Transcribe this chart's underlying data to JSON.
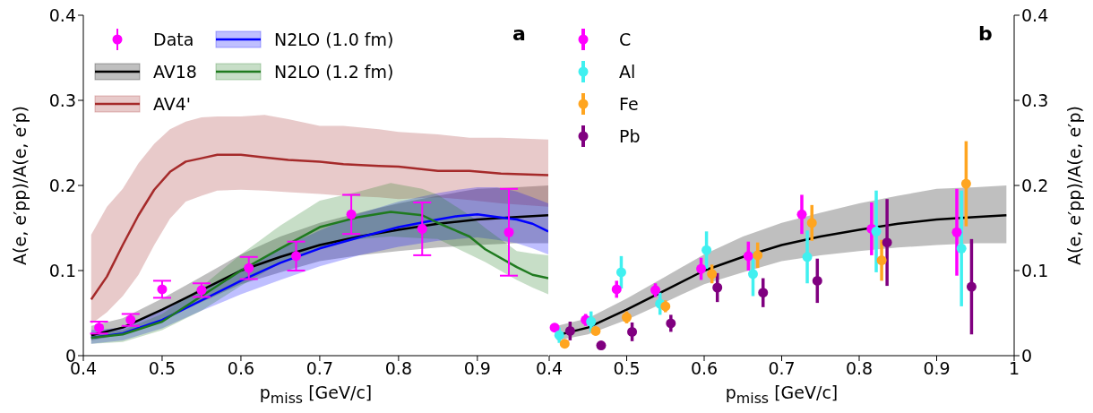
{
  "chart_data": [
    {
      "type": "line",
      "title": "a",
      "xlabel": "p$_{miss}$ [GeV/c]",
      "ylabel": "A(e, e′pp)/A(e, e′p)",
      "xlim": [
        0.4,
        0.99
      ],
      "xticks": [
        0.4,
        0.5,
        0.6,
        0.7,
        0.8,
        0.9
      ],
      "ylim": [
        0,
        0.4
      ],
      "yticks": [
        0,
        0.1,
        0.2,
        0.3,
        0.4
      ],
      "grid": false,
      "legend": "top left",
      "line_style": "solid",
      "series": [
        {
          "name": "Data",
          "type": "scatter",
          "color": "#ff00ff",
          "marker": "circle",
          "x": [
            0.42,
            0.46,
            0.5,
            0.55,
            0.61,
            0.67,
            0.74,
            0.83,
            0.94
          ],
          "values": [
            0.033,
            0.042,
            0.078,
            0.077,
            0.103,
            0.117,
            0.166,
            0.149,
            0.145
          ],
          "errors": [
            0.007,
            0.007,
            0.01,
            0.008,
            0.013,
            0.017,
            0.023,
            0.031,
            0.051
          ]
        },
        {
          "name": "AV18",
          "type": "line",
          "color": "#000000",
          "x": [
            0.41,
            0.45,
            0.5,
            0.55,
            0.6,
            0.65,
            0.7,
            0.75,
            0.8,
            0.85,
            0.9,
            0.95,
            0.99
          ],
          "values": [
            0.024,
            0.033,
            0.054,
            0.077,
            0.1,
            0.116,
            0.13,
            0.14,
            0.148,
            0.155,
            0.16,
            0.163,
            0.165
          ],
          "upper": [
            0.035,
            0.044,
            0.067,
            0.093,
            0.119,
            0.14,
            0.156,
            0.168,
            0.179,
            0.188,
            0.196,
            0.198,
            0.2
          ],
          "lower": [
            0.018,
            0.025,
            0.042,
            0.063,
            0.084,
            0.098,
            0.111,
            0.118,
            0.123,
            0.127,
            0.13,
            0.132,
            0.132
          ]
        },
        {
          "name": "AV4'",
          "type": "line",
          "color": "#a52a2a",
          "x": [
            0.41,
            0.43,
            0.45,
            0.47,
            0.49,
            0.51,
            0.53,
            0.55,
            0.57,
            0.6,
            0.63,
            0.66,
            0.7,
            0.73,
            0.775,
            0.8,
            0.85,
            0.89,
            0.93,
            0.99
          ],
          "values": [
            0.066,
            0.093,
            0.13,
            0.165,
            0.195,
            0.216,
            0.228,
            0.232,
            0.236,
            0.236,
            0.233,
            0.23,
            0.228,
            0.225,
            0.223,
            0.222,
            0.217,
            0.217,
            0.214,
            0.212
          ],
          "upper": [
            0.142,
            0.175,
            0.196,
            0.226,
            0.249,
            0.266,
            0.275,
            0.28,
            0.281,
            0.281,
            0.283,
            0.278,
            0.27,
            0.27,
            0.266,
            0.263,
            0.26,
            0.256,
            0.256,
            0.254
          ],
          "lower": [
            0.037,
            0.051,
            0.07,
            0.095,
            0.13,
            0.161,
            0.181,
            0.188,
            0.194,
            0.195,
            0.194,
            0.192,
            0.19,
            0.188,
            0.186,
            0.184,
            0.186,
            0.183,
            0.179,
            0.175
          ]
        },
        {
          "name": "N2LO (1.0 fm)",
          "type": "line",
          "color": "#0000ff",
          "x": [
            0.41,
            0.45,
            0.5,
            0.55,
            0.6,
            0.65,
            0.7,
            0.75,
            0.8,
            0.85,
            0.875,
            0.9,
            0.925,
            0.95,
            0.97,
            0.99
          ],
          "values": [
            0.021,
            0.026,
            0.042,
            0.065,
            0.088,
            0.109,
            0.126,
            0.139,
            0.151,
            0.16,
            0.164,
            0.166,
            0.163,
            0.16,
            0.155,
            0.146
          ],
          "upper": [
            0.03,
            0.033,
            0.053,
            0.075,
            0.102,
            0.126,
            0.147,
            0.167,
            0.181,
            0.191,
            0.195,
            0.198,
            0.198,
            0.193,
            0.186,
            0.179
          ],
          "lower": [
            0.014,
            0.018,
            0.032,
            0.053,
            0.072,
            0.089,
            0.105,
            0.118,
            0.128,
            0.135,
            0.137,
            0.139,
            0.136,
            0.132,
            0.126,
            0.119
          ]
        },
        {
          "name": "N2LO (1.2 fm)",
          "type": "line",
          "color": "#1f7a1f",
          "x": [
            0.41,
            0.45,
            0.5,
            0.55,
            0.6,
            0.65,
            0.7,
            0.75,
            0.79,
            0.83,
            0.85,
            0.89,
            0.91,
            0.95,
            0.97,
            0.99
          ],
          "values": [
            0.021,
            0.025,
            0.04,
            0.07,
            0.1,
            0.126,
            0.151,
            0.163,
            0.169,
            0.165,
            0.156,
            0.14,
            0.125,
            0.104,
            0.095,
            0.091
          ],
          "upper": [
            0.026,
            0.03,
            0.049,
            0.081,
            0.119,
            0.153,
            0.182,
            0.193,
            0.203,
            0.196,
            0.189,
            0.165,
            0.15,
            0.123,
            0.12,
            0.118
          ],
          "lower": [
            0.014,
            0.016,
            0.03,
            0.053,
            0.082,
            0.109,
            0.126,
            0.137,
            0.14,
            0.138,
            0.137,
            0.119,
            0.11,
            0.089,
            0.08,
            0.072
          ]
        }
      ]
    },
    {
      "type": "line",
      "title": "b",
      "xlabel": "p$_{miss}$ [GeV/c]",
      "ylabel": "A(e, e′pp)/A(e, e′p)",
      "xlim": [
        0.4,
        1.0
      ],
      "xticks": [
        0.4,
        0.5,
        0.6,
        0.7,
        0.8,
        0.9,
        1
      ],
      "ylim": [
        0,
        0.4
      ],
      "yticks": [
        0,
        0.1,
        0.2,
        0.3,
        0.4
      ],
      "grid": false,
      "legend": "top left",
      "line_style": "solid",
      "series": [
        {
          "type": "line",
          "color": "#000000",
          "x": [
            0.41,
            0.45,
            0.5,
            0.55,
            0.6,
            0.65,
            0.7,
            0.75,
            0.8,
            0.85,
            0.9,
            0.95,
            0.99
          ],
          "values": [
            0.024,
            0.033,
            0.054,
            0.077,
            0.1,
            0.116,
            0.13,
            0.14,
            0.148,
            0.155,
            0.16,
            0.163,
            0.165
          ],
          "upper": [
            0.035,
            0.044,
            0.067,
            0.093,
            0.119,
            0.14,
            0.156,
            0.168,
            0.179,
            0.188,
            0.196,
            0.198,
            0.2
          ],
          "lower": [
            0.018,
            0.025,
            0.042,
            0.063,
            0.084,
            0.098,
            0.111,
            0.118,
            0.123,
            0.127,
            0.13,
            0.132,
            0.132
          ]
        },
        {
          "name": "C",
          "type": "scatter",
          "color": "#ff00ff",
          "marker": "circle",
          "x": [
            0.407,
            0.447,
            0.487,
            0.537,
            0.596,
            0.657,
            0.726,
            0.816,
            0.926
          ],
          "values": [
            0.033,
            0.042,
            0.078,
            0.077,
            0.102,
            0.117,
            0.166,
            0.149,
            0.145
          ],
          "errors": [
            0.005,
            0.007,
            0.01,
            0.008,
            0.013,
            0.017,
            0.023,
            0.031,
            0.051
          ]
        },
        {
          "name": "Al",
          "type": "scatter",
          "color": "#40f0f0",
          "marker": "circle",
          "x": [
            0.413,
            0.454,
            0.493,
            0.543,
            0.603,
            0.663,
            0.733,
            0.822,
            0.932
          ],
          "values": [
            0.024,
            0.04,
            0.098,
            0.061,
            0.124,
            0.096,
            0.116,
            0.146,
            0.126
          ],
          "errors": [
            0.009,
            0.012,
            0.019,
            0.013,
            0.022,
            0.026,
            0.031,
            0.048,
            0.068
          ]
        },
        {
          "name": "Fe",
          "type": "scatter",
          "color": "#ffa520",
          "marker": "circle",
          "x": [
            0.42,
            0.46,
            0.5,
            0.55,
            0.61,
            0.669,
            0.739,
            0.829,
            0.938
          ],
          "values": [
            0.014,
            0.029,
            0.045,
            0.058,
            0.096,
            0.118,
            0.156,
            0.112,
            0.202
          ],
          "errors": [
            null,
            0.005,
            0.007,
            0.007,
            0.011,
            0.015,
            0.021,
            0.024,
            0.05
          ]
        },
        {
          "name": "Pb",
          "type": "scatter",
          "color": "#800080",
          "marker": "circle",
          "x": [
            0.427,
            0.467,
            0.507,
            0.557,
            0.617,
            0.676,
            0.746,
            0.836,
            0.945
          ],
          "values": [
            0.029,
            0.012,
            0.028,
            0.038,
            0.08,
            0.074,
            0.088,
            0.133,
            0.081
          ],
          "errors": [
            0.011,
            0.004,
            0.011,
            0.01,
            0.017,
            0.017,
            0.026,
            0.051,
            0.056
          ]
        }
      ]
    }
  ]
}
